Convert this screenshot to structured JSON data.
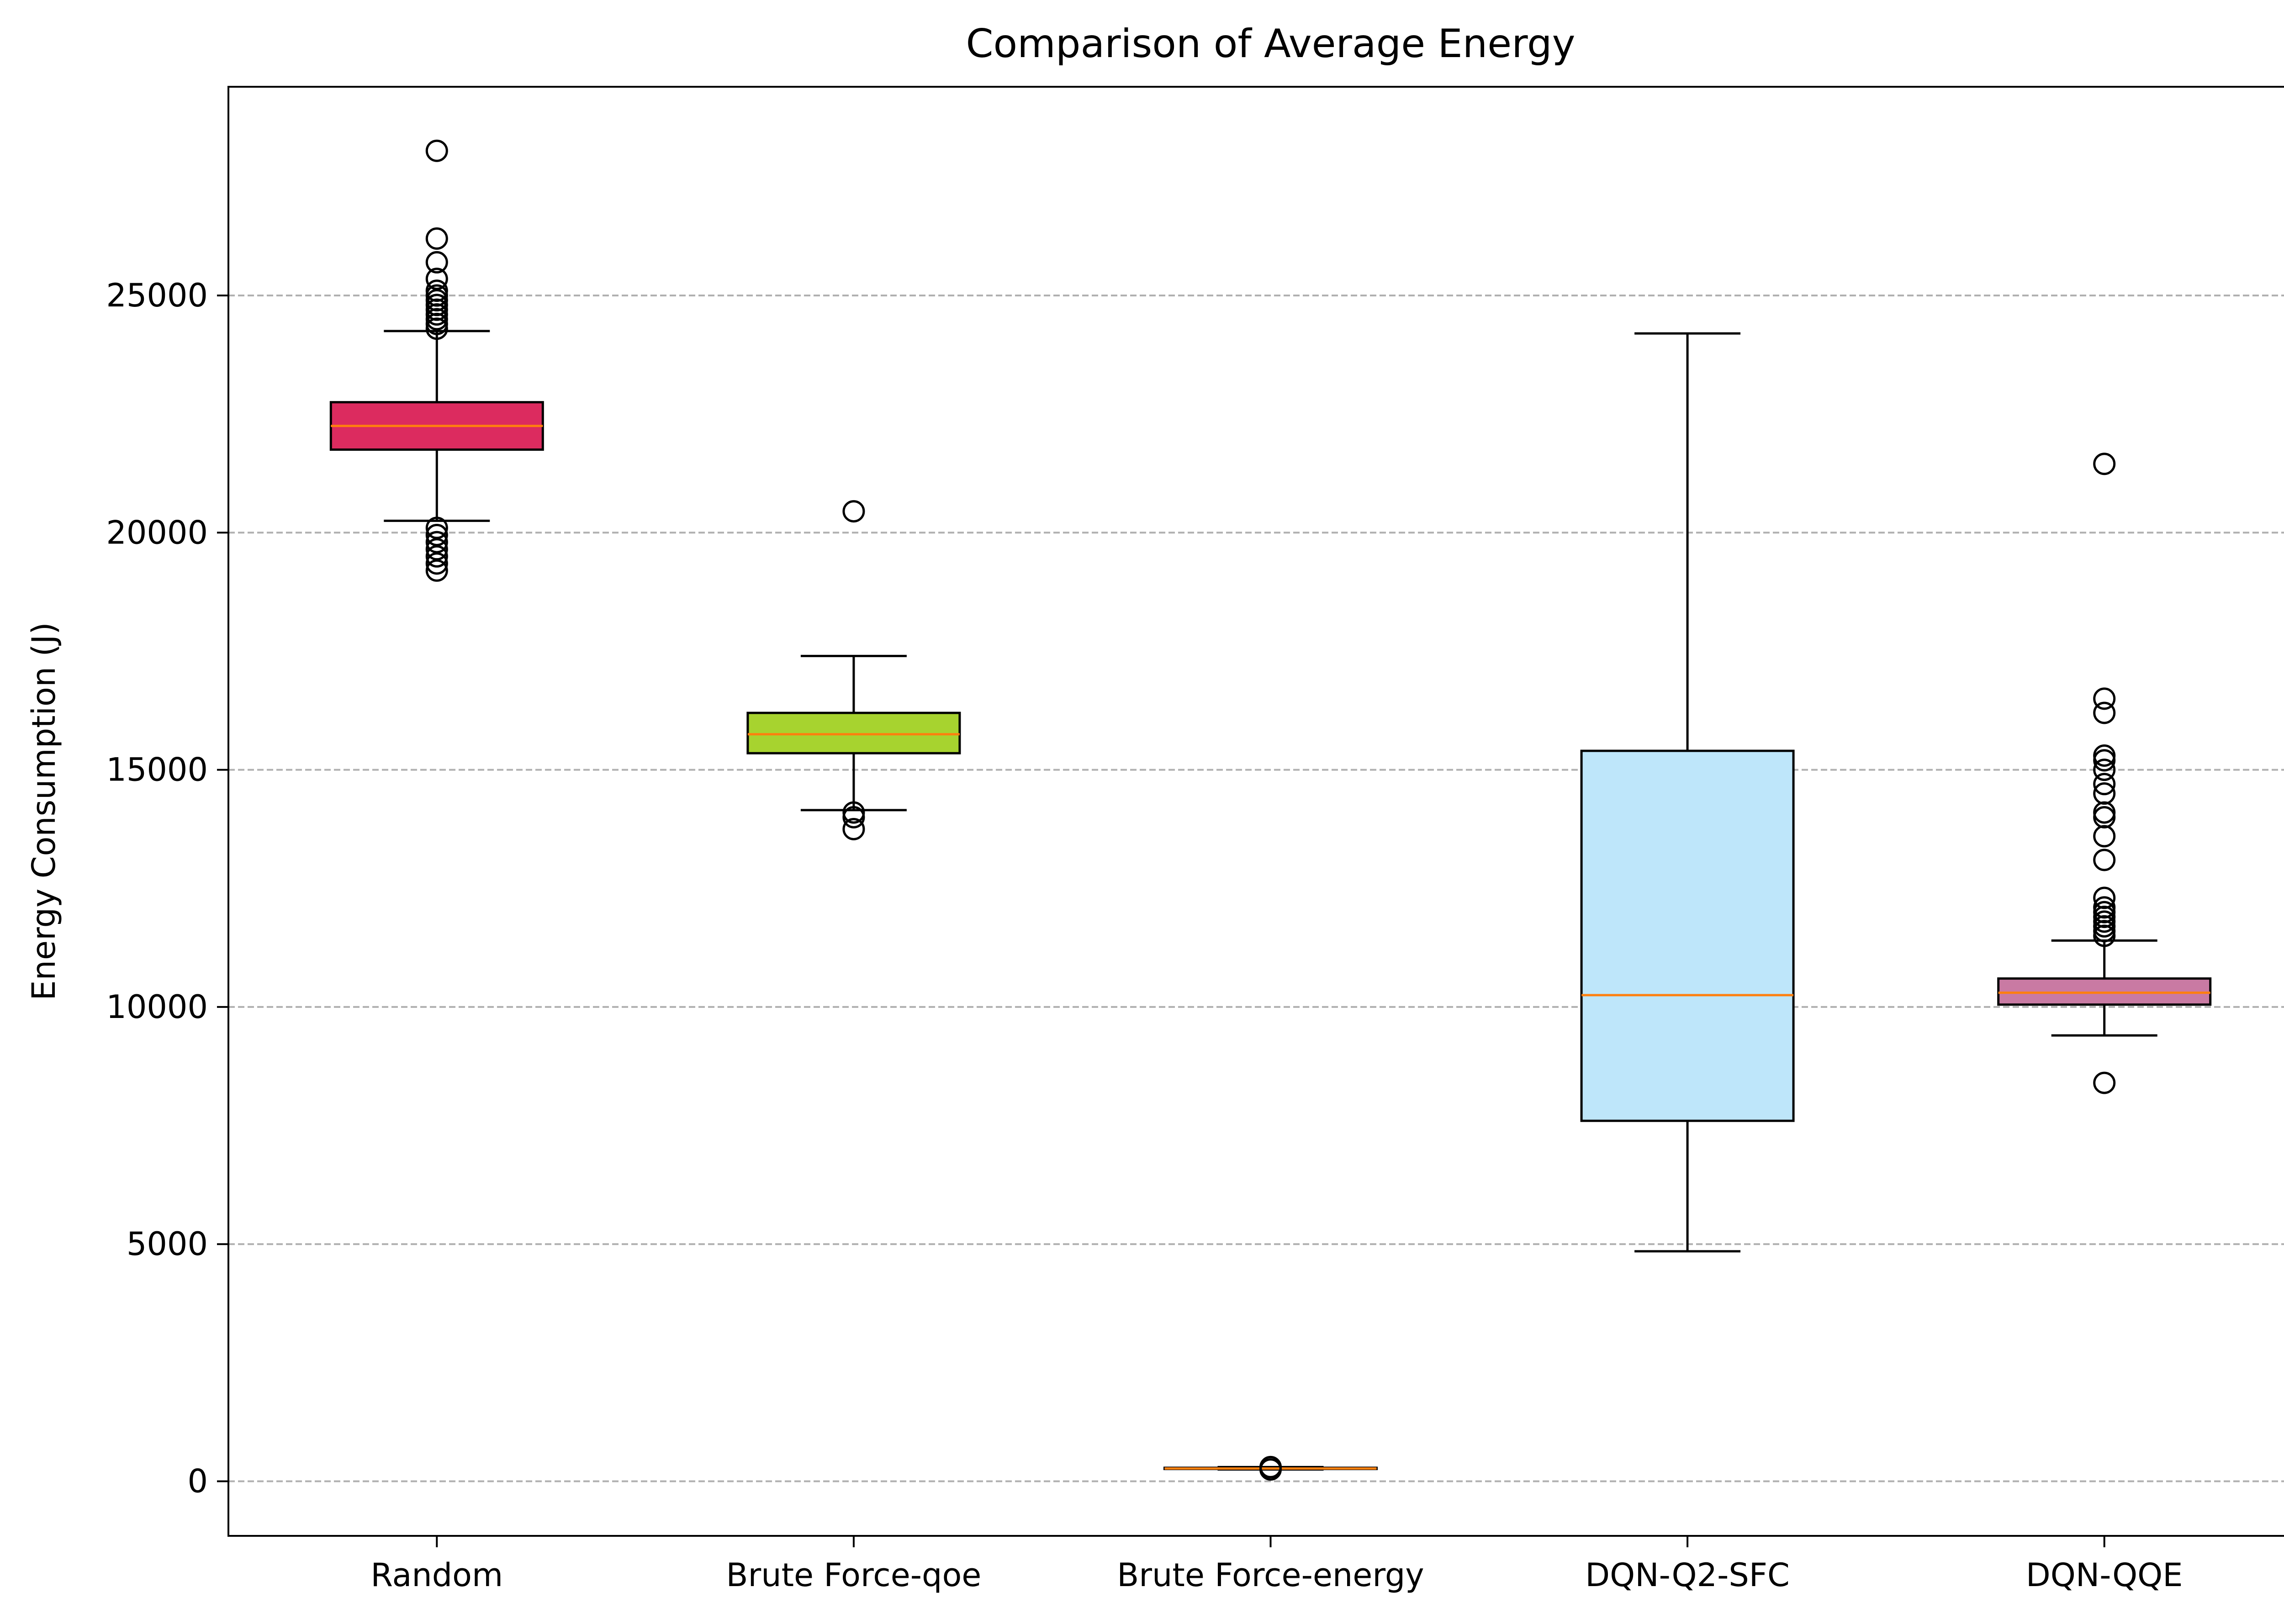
{
  "chart_data": {
    "type": "boxplot",
    "title": "Comparison of Average Energy",
    "xlabel": "",
    "ylabel": "Energy Consumption (J)",
    "ylim": [
      -1150,
      29400
    ],
    "yticks": [
      0,
      5000,
      10000,
      15000,
      20000,
      25000
    ],
    "grid": {
      "y": true,
      "style": "dashed",
      "color": "#b0b0b0"
    },
    "median_color": "#ff7f0e",
    "categories": [
      "Random",
      "Brute Force-qoe",
      "Brute Force-energy",
      "DQN-Q2-SFC",
      "DQN-QQE"
    ],
    "boxes": [
      {
        "label": "Random",
        "color": "#dc2b5f",
        "q1": 21750,
        "median": 22250,
        "q3": 22750,
        "whisker_low": 20250,
        "whisker_high": 24250,
        "outliers": [
          28050,
          26200,
          25700,
          25350,
          25100,
          25000,
          24900,
          24800,
          24700,
          24600,
          24500,
          24400,
          24300,
          20100,
          19950,
          19800,
          19650,
          19500,
          19350,
          19200
        ]
      },
      {
        "label": "Brute Force-qoe",
        "color": "#a7d32f",
        "q1": 15350,
        "median": 15750,
        "q3": 16200,
        "whisker_low": 14150,
        "whisker_high": 17400,
        "outliers": [
          20450,
          14100,
          14000,
          13750
        ]
      },
      {
        "label": "Brute Force-energy",
        "color": "#1f77b4",
        "q1": 260,
        "median": 270,
        "q3": 285,
        "whisker_low": 250,
        "whisker_high": 300,
        "outliers": [
          300,
          250
        ]
      },
      {
        "label": "DQN-Q2-SFC",
        "color": "#bee6fa",
        "q1": 7600,
        "median": 10250,
        "q3": 15400,
        "whisker_low": 4850,
        "whisker_high": 24200,
        "outliers": []
      },
      {
        "label": "DQN-QQE",
        "color": "#c97aa3",
        "q1": 10050,
        "median": 10300,
        "q3": 10600,
        "whisker_low": 9400,
        "whisker_high": 11400,
        "outliers": [
          21450,
          16500,
          16200,
          15300,
          15200,
          15000,
          14700,
          14500,
          14100,
          14000,
          13600,
          13100,
          12300,
          12100,
          12000,
          11900,
          11800,
          11700,
          11600,
          11500,
          8400
        ]
      }
    ]
  }
}
